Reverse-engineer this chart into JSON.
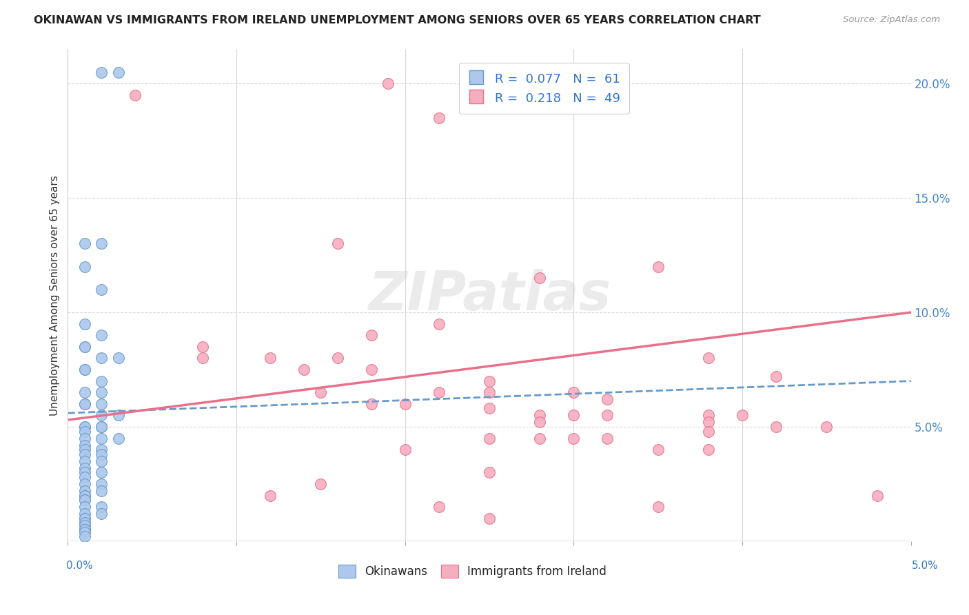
{
  "title": "OKINAWAN VS IMMIGRANTS FROM IRELAND UNEMPLOYMENT AMONG SENIORS OVER 65 YEARS CORRELATION CHART",
  "source": "Source: ZipAtlas.com",
  "ylabel": "Unemployment Among Seniors over 65 years",
  "watermark": "ZIPatlas",
  "legend1_color": "#adc8ea",
  "legend2_color": "#f5aec0",
  "trend1_color": "#6699cc",
  "trend2_color": "#e8708a",
  "xlim": [
    0.0,
    0.05
  ],
  "ylim": [
    0.0,
    0.215
  ],
  "background_color": "#ffffff",
  "grid_color": "#d8d8d8",
  "okinawan_x": [
    0.002,
    0.003,
    0.001,
    0.002,
    0.001,
    0.002,
    0.001,
    0.002,
    0.001,
    0.001,
    0.002,
    0.003,
    0.001,
    0.001,
    0.002,
    0.001,
    0.002,
    0.001,
    0.002,
    0.001,
    0.002,
    0.003,
    0.001,
    0.002,
    0.001,
    0.002,
    0.001,
    0.002,
    0.001,
    0.003,
    0.001,
    0.002,
    0.001,
    0.001,
    0.002,
    0.001,
    0.002,
    0.001,
    0.001,
    0.002,
    0.001,
    0.002,
    0.001,
    0.001,
    0.002,
    0.001,
    0.001,
    0.001,
    0.001,
    0.002,
    0.001,
    0.001,
    0.002,
    0.001,
    0.001,
    0.001,
    0.001,
    0.001,
    0.001,
    0.001,
    0.001
  ],
  "okinawan_y": [
    0.205,
    0.205,
    0.13,
    0.13,
    0.12,
    0.11,
    0.095,
    0.09,
    0.085,
    0.085,
    0.08,
    0.08,
    0.075,
    0.075,
    0.07,
    0.065,
    0.065,
    0.06,
    0.06,
    0.06,
    0.055,
    0.055,
    0.05,
    0.05,
    0.05,
    0.05,
    0.048,
    0.045,
    0.045,
    0.045,
    0.042,
    0.04,
    0.04,
    0.038,
    0.038,
    0.035,
    0.035,
    0.032,
    0.03,
    0.03,
    0.028,
    0.025,
    0.025,
    0.022,
    0.022,
    0.02,
    0.02,
    0.018,
    0.018,
    0.015,
    0.015,
    0.012,
    0.012,
    0.01,
    0.01,
    0.008,
    0.007,
    0.005,
    0.005,
    0.004,
    0.002
  ],
  "ireland_x": [
    0.004,
    0.019,
    0.022,
    0.016,
    0.035,
    0.028,
    0.022,
    0.018,
    0.008,
    0.008,
    0.012,
    0.016,
    0.014,
    0.018,
    0.025,
    0.03,
    0.025,
    0.022,
    0.015,
    0.018,
    0.02,
    0.025,
    0.03,
    0.038,
    0.028,
    0.032,
    0.04,
    0.038,
    0.042,
    0.045,
    0.038,
    0.03,
    0.025,
    0.028,
    0.032,
    0.035,
    0.038,
    0.02,
    0.025,
    0.015,
    0.012,
    0.048,
    0.035,
    0.022,
    0.025,
    0.038,
    0.042,
    0.032,
    0.028
  ],
  "ireland_y": [
    0.195,
    0.2,
    0.185,
    0.13,
    0.12,
    0.115,
    0.095,
    0.09,
    0.085,
    0.08,
    0.08,
    0.08,
    0.075,
    0.075,
    0.07,
    0.065,
    0.065,
    0.065,
    0.065,
    0.06,
    0.06,
    0.058,
    0.055,
    0.055,
    0.055,
    0.055,
    0.055,
    0.052,
    0.05,
    0.05,
    0.048,
    0.045,
    0.045,
    0.045,
    0.045,
    0.04,
    0.04,
    0.04,
    0.03,
    0.025,
    0.02,
    0.02,
    0.015,
    0.015,
    0.01,
    0.08,
    0.072,
    0.062,
    0.052
  ],
  "trend1_x": [
    0.0,
    0.05
  ],
  "trend1_y": [
    0.056,
    0.07
  ],
  "trend2_x": [
    0.0,
    0.05
  ],
  "trend2_y": [
    0.053,
    0.1
  ]
}
